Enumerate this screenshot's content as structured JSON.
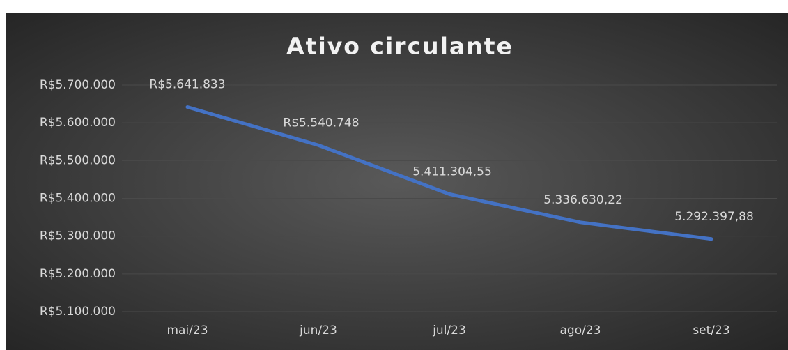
{
  "chart_data": {
    "type": "line",
    "title": "Ativo circulante",
    "categories": [
      "mai/23",
      "jun/23",
      "jul/23",
      "ago/23",
      "set/23"
    ],
    "series": [
      {
        "name": "Ativo circulante",
        "color": "#4472c4",
        "values": [
          5641833,
          5540748,
          5411304.55,
          5336630.22,
          5292397.88
        ],
        "value_labels": [
          "R$5.641.833",
          "R$5.540.748",
          "5.411.304,55",
          "5.336.630,22",
          "5.292.397,88"
        ]
      }
    ],
    "ylim": [
      5100000,
      5700000
    ],
    "yticks": [
      {
        "value": 5100000,
        "label": "R$5.100.000"
      },
      {
        "value": 5200000,
        "label": "R$5.200.000"
      },
      {
        "value": 5300000,
        "label": "R$5.300.000"
      },
      {
        "value": 5400000,
        "label": "R$5.400.000"
      },
      {
        "value": 5500000,
        "label": "R$5.500.000"
      },
      {
        "value": 5600000,
        "label": "R$5.600.000"
      },
      {
        "value": 5700000,
        "label": "R$5.700.000"
      }
    ],
    "grid": true
  }
}
